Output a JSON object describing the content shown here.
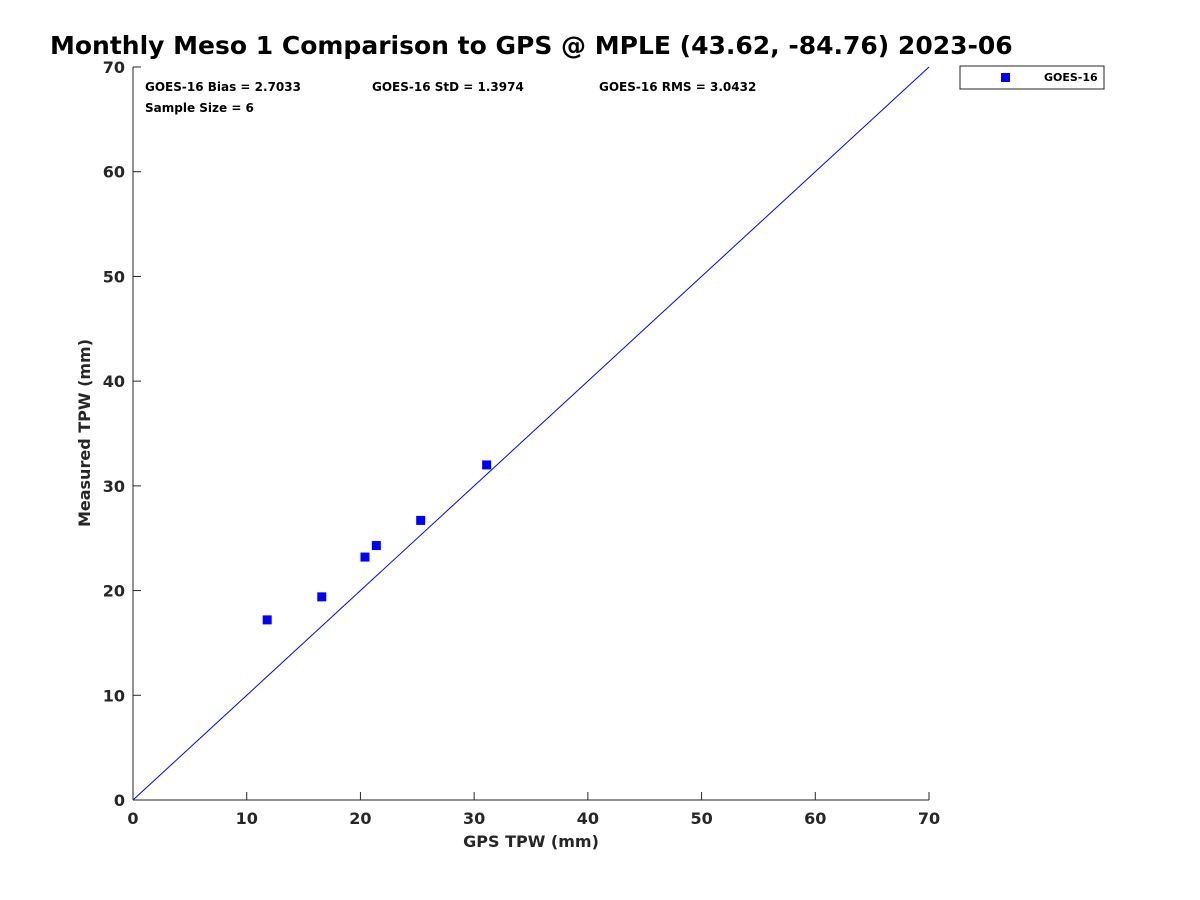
{
  "chart_data": {
    "type": "scatter",
    "title": "Monthly Meso 1 Comparison to GPS @ MPLE (43.62, -84.76) 2023-06",
    "xlabel": "GPS TPW (mm)",
    "ylabel": "Measured TPW (mm)",
    "xlim": [
      0,
      70
    ],
    "ylim": [
      0,
      70
    ],
    "xticks": [
      0,
      10,
      20,
      30,
      40,
      50,
      60,
      70
    ],
    "yticks": [
      0,
      10,
      20,
      30,
      40,
      50,
      60,
      70
    ],
    "grid": false,
    "legend_position": "outside-top-right",
    "reference_line": {
      "from": [
        0,
        0
      ],
      "to": [
        70,
        70
      ],
      "color": "#0000ff"
    },
    "series": [
      {
        "name": "GOES-16",
        "color": "#0000ff",
        "marker": "square",
        "points": [
          {
            "x": 11.8,
            "y": 17.2
          },
          {
            "x": 16.6,
            "y": 19.4
          },
          {
            "x": 20.4,
            "y": 23.2
          },
          {
            "x": 21.4,
            "y": 24.3
          },
          {
            "x": 25.3,
            "y": 26.7
          },
          {
            "x": 31.1,
            "y": 32.0
          }
        ]
      }
    ],
    "annotations": [
      "GOES-16 Bias = 2.7033",
      "GOES-16 StD = 1.3974",
      "GOES-16 RMS = 3.0432",
      "Sample Size = 6"
    ]
  }
}
